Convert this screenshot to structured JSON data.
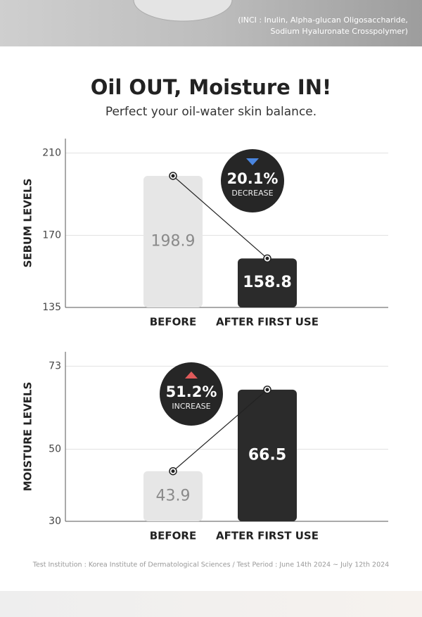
{
  "header": {
    "inci": [
      "(INCI : Inulin, Alpha-glucan Oligosaccharide,",
      "Sodium Hyaluronate Crosspolymer)"
    ]
  },
  "title": "Oil OUT, Moisture IN!",
  "subtitle": "Perfect your oil-water skin balance.",
  "chart_data": [
    {
      "type": "bar",
      "ylabel": "SEBUM LEVELS",
      "categories": [
        "BEFORE",
        "AFTER FIRST USE"
      ],
      "values": [
        198.9,
        158.8
      ],
      "colors": [
        "#e6e6e6",
        "#2b2b2b"
      ],
      "label_colors": [
        "#8a8a8a",
        "#ffffff"
      ],
      "ylim": [
        135,
        217
      ],
      "yticks": [
        135,
        170,
        210
      ],
      "grid": true,
      "annotation": {
        "value": "20.1%",
        "label": "DECREASE",
        "color": "#4a86e0",
        "direction": "down"
      }
    },
    {
      "type": "bar",
      "ylabel": "MOISTURE LEVELS",
      "categories": [
        "BEFORE",
        "AFTER FIRST USE"
      ],
      "values": [
        43.9,
        66.5
      ],
      "colors": [
        "#e6e6e6",
        "#2b2b2b"
      ],
      "label_colors": [
        "#8a8a8a",
        "#ffffff"
      ],
      "ylim": [
        30,
        77
      ],
      "yticks": [
        30,
        50,
        73
      ],
      "grid": true,
      "annotation": {
        "value": "51.2%",
        "label": "INCREASE",
        "color": "#e05a5a",
        "direction": "up"
      }
    }
  ],
  "footer": "Test Institution : Korea Institute of Dermatological Sciences / Test Period : June 14th 2024 ~ July 12th 2024"
}
